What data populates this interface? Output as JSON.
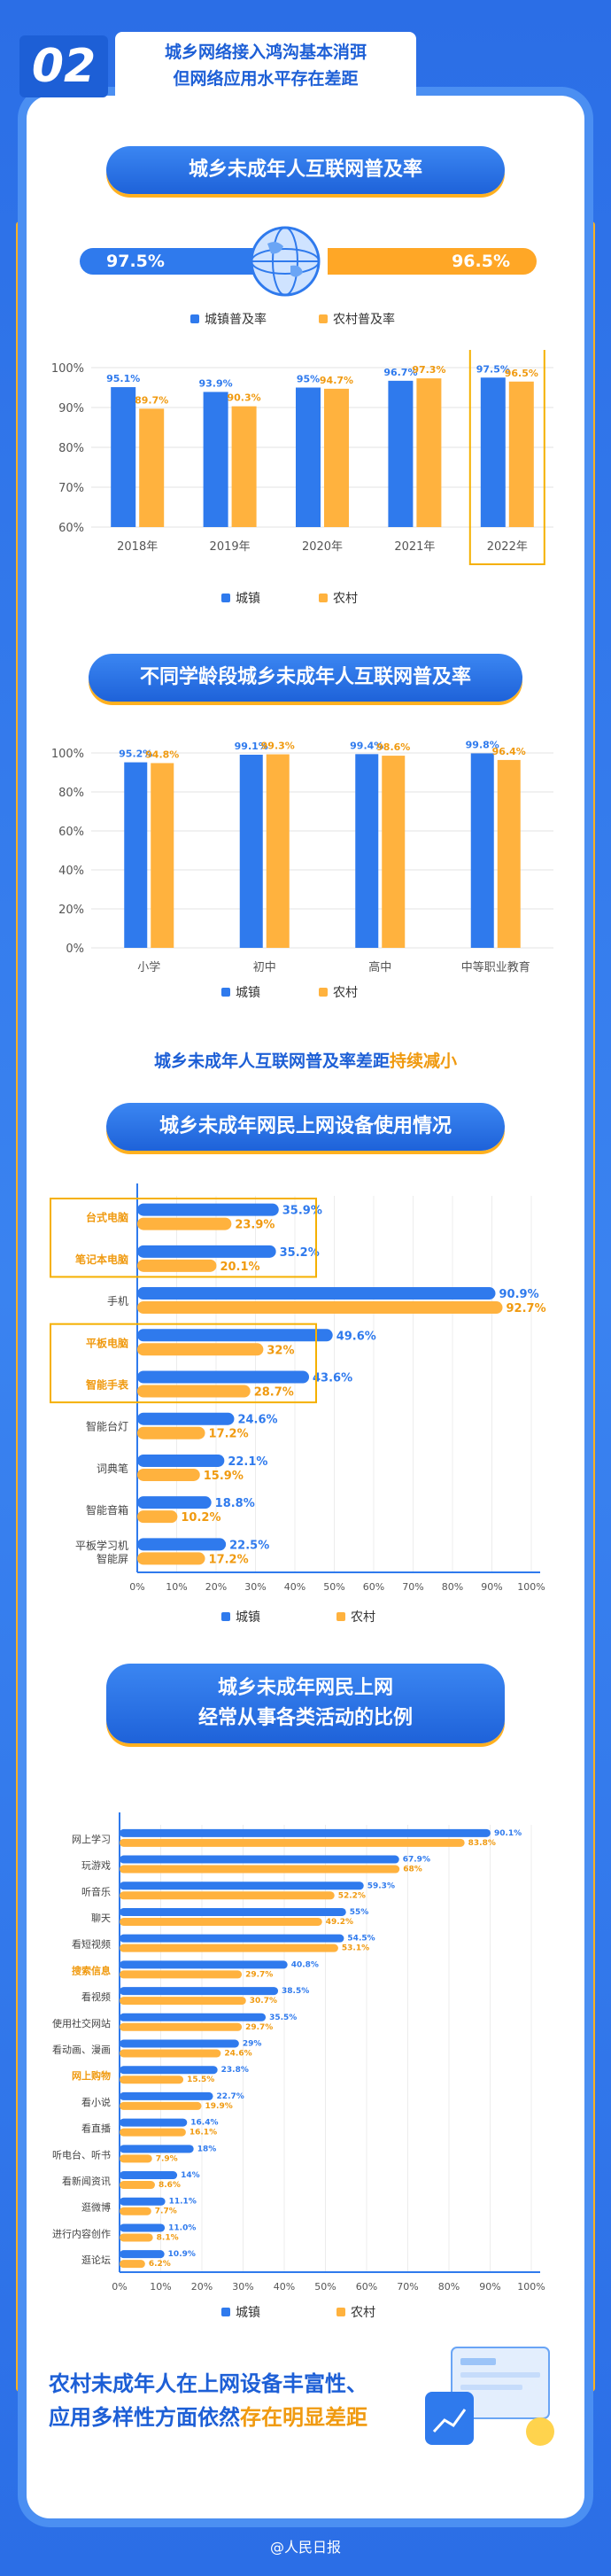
{
  "header": {
    "number": "02",
    "line1": "城乡网络接入鸿沟基本消弭",
    "line2": "但网络应用水平存在差距"
  },
  "section1": {
    "title": "城乡未成年人互联网普及率",
    "urban_rate": "97.5%",
    "rural_rate": "96.5%",
    "legend_urban": "城镇普及率",
    "legend_rural": "农村普及率"
  },
  "section2": {
    "title": "不同学龄段城乡未成年人互联网普及率",
    "legend_urban": "城镇",
    "legend_rural": "农村",
    "caption_pre": "城乡未成年人互联网普及率差距",
    "caption_em": "持续减小"
  },
  "section3": {
    "title": "城乡未成年网民上网设备使用情况",
    "legend_urban": "城镇",
    "legend_rural": "农村"
  },
  "section4": {
    "title_line1": "城乡未成年网民上网",
    "title_line2": "经常从事各类活动的比例",
    "legend_urban": "城镇",
    "legend_rural": "农村"
  },
  "bottom": {
    "line1": "农村未成年人在上网设备丰富性、",
    "line2_pre": "应用多样性方面依然",
    "line2_em": "存在明显差距"
  },
  "footer": {
    "text": "@人民日报"
  },
  "colors": {
    "urban": "#2f7aed",
    "rural": "#ffb23e",
    "accent": "#f09a10",
    "title": "#1d5fd6"
  },
  "chart_data": [
    {
      "type": "bar",
      "categories": [
        "2018年",
        "2019年",
        "2020年",
        "2021年",
        "2022年"
      ],
      "series": [
        {
          "name": "城镇",
          "values": [
            95.1,
            93.9,
            95,
            96.7,
            97.5
          ],
          "labels": [
            "95.1%",
            "93.9%",
            "95%",
            "96.7%",
            "97.5%"
          ]
        },
        {
          "name": "农村",
          "values": [
            89.7,
            90.3,
            94.7,
            97.3,
            96.5
          ],
          "labels": [
            "89.7%",
            "90.3%",
            "94.7%",
            "97.3%",
            "96.5%"
          ]
        }
      ],
      "yticks": [
        "60%",
        "70%",
        "80%",
        "90%",
        "100%"
      ],
      "ylim": [
        60,
        100
      ],
      "highlight_category": "2022年"
    },
    {
      "type": "bar",
      "categories": [
        "小学",
        "初中",
        "高中",
        "中等职业教育"
      ],
      "series": [
        {
          "name": "城镇",
          "values": [
            95.2,
            99.1,
            99.4,
            99.8
          ],
          "labels": [
            "95.2%",
            "99.1%",
            "99.4%",
            "99.8%"
          ]
        },
        {
          "name": "农村",
          "values": [
            94.8,
            99.3,
            98.6,
            96.4
          ],
          "labels": [
            "94.8%",
            "99.3%",
            "98.6%",
            "96.4%"
          ]
        }
      ],
      "yticks": [
        "0%",
        "20%",
        "40%",
        "60%",
        "80%",
        "100%"
      ],
      "ylim": [
        0,
        100
      ]
    },
    {
      "type": "bar",
      "orientation": "horizontal",
      "categories": [
        "台式电脑",
        "笔记本电脑",
        "手机",
        "平板电脑",
        "智能手表",
        "智能台灯",
        "词典笔",
        "智能音箱",
        "平板学习机\n智能屏"
      ],
      "highlight_categories": [
        "台式电脑",
        "笔记本电脑",
        "平板电脑",
        "智能手表"
      ],
      "series": [
        {
          "name": "城镇",
          "values": [
            35.9,
            35.2,
            90.9,
            49.6,
            43.6,
            24.6,
            22.1,
            18.8,
            22.5
          ],
          "labels": [
            "35.9%",
            "35.2%",
            "90.9%",
            "49.6%",
            "43.6%",
            "24.6%",
            "22.1%",
            "18.8%",
            "22.5%"
          ]
        },
        {
          "name": "农村",
          "values": [
            23.9,
            20.1,
            92.7,
            32,
            28.7,
            17.2,
            15.9,
            10.2,
            17.2
          ],
          "labels": [
            "23.9%",
            "20.1%",
            "92.7%",
            "32%",
            "28.7%",
            "17.2%",
            "15.9%",
            "10.2%",
            "17.2%"
          ]
        }
      ],
      "xticks": [
        "0%",
        "10%",
        "20%",
        "30%",
        "40%",
        "50%",
        "60%",
        "70%",
        "80%",
        "90%",
        "100%"
      ],
      "xlim": [
        0,
        100
      ]
    },
    {
      "type": "bar",
      "orientation": "horizontal",
      "categories": [
        "网上学习",
        "玩游戏",
        "听音乐",
        "聊天",
        "看短视频",
        "搜索信息",
        "看视频",
        "使用社交网站",
        "看动画、漫画",
        "网上购物",
        "看小说",
        "看直播",
        "听电台、听书",
        "看新闻资讯",
        "逛微博",
        "进行内容创作",
        "逛论坛"
      ],
      "highlight_categories": [
        "搜索信息",
        "网上购物"
      ],
      "series": [
        {
          "name": "城镇",
          "values": [
            90.1,
            67.9,
            59.3,
            55,
            54.5,
            40.8,
            38.5,
            35.5,
            29,
            23.8,
            22.7,
            16.4,
            18,
            14,
            11.1,
            11,
            10.9
          ],
          "labels": [
            "90.1%",
            "67.9%",
            "59.3%",
            "55%",
            "54.5%",
            "40.8%",
            "38.5%",
            "35.5%",
            "29%",
            "23.8%",
            "22.7%",
            "16.4%",
            "18%",
            "14%",
            "11.1%",
            "11.0%",
            "10.9%"
          ]
        },
        {
          "name": "农村",
          "values": [
            83.8,
            68,
            52.2,
            49.2,
            53.1,
            29.7,
            30.7,
            29.7,
            24.6,
            15.5,
            19.9,
            16.1,
            7.9,
            8.6,
            7.7,
            8.1,
            6.2
          ],
          "labels": [
            "83.8%",
            "68%",
            "52.2%",
            "49.2%",
            "53.1%",
            "29.7%",
            "30.7%",
            "29.7%",
            "24.6%",
            "15.5%",
            "19.9%",
            "16.1%",
            "7.9%",
            "8.6%",
            "7.7%",
            "8.1%",
            "6.2%"
          ]
        }
      ],
      "xticks": [
        "0%",
        "10%",
        "20%",
        "30%",
        "40%",
        "50%",
        "60%",
        "70%",
        "80%",
        "90%",
        "100%"
      ],
      "xlim": [
        0,
        100
      ]
    }
  ]
}
